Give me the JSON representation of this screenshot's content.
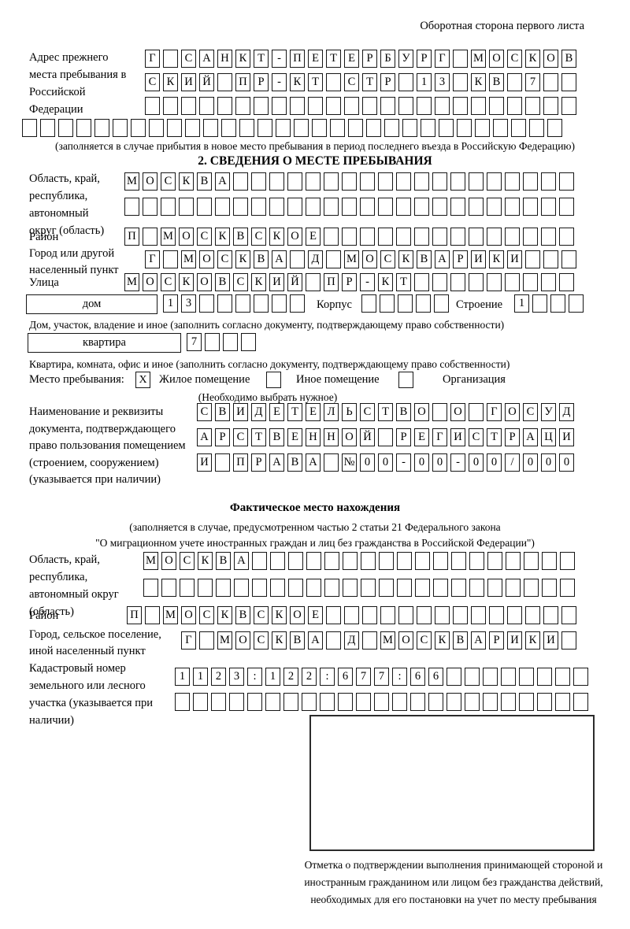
{
  "header": {
    "note": "Оборотная сторона первого листа"
  },
  "prev_address": {
    "label": "Адрес прежнего места пребывания в Российской Федерации",
    "row1": {
      "n": 24,
      "chars": "Г САНКТ-ПЕТЕРБУРГ МОСКОВ"
    },
    "row2": {
      "n": 24,
      "chars": "СКИЙ ПР-КТ СТР 13 КВ 7"
    },
    "row3": {
      "n": 24,
      "chars": ""
    },
    "row4": {
      "n": 30,
      "chars": ""
    },
    "caption": "(заполняется в случае прибытия в новое место пребывания в период последнего въезда в Российскую Федерацию)"
  },
  "section2": {
    "title": "2. СВЕДЕНИЯ О МЕСТЕ ПРЕБЫВАНИЯ",
    "oblast_label": "Область, край, республика, автономный округ (область)",
    "oblast_row1": {
      "n": 25,
      "chars": "МОСКВА"
    },
    "oblast_row2": {
      "n": 25,
      "chars": ""
    },
    "raion_label": "Район",
    "raion_row": {
      "n": 25,
      "chars": "П МОСКВСКОЕ"
    },
    "gorod_label": "Город или другой населенный пункт",
    "gorod_row": {
      "n": 24,
      "chars": "Г МОСКВА Д МОСКВАРИКИ"
    },
    "ulitsa_label": "Улица",
    "ulitsa_row": {
      "n": 25,
      "chars": "МОСКОВСКИЙ ПР-КТ"
    },
    "dom_label": "дом",
    "dom_row": {
      "n": 8,
      "chars": "13"
    },
    "korpus_label": "Корпус",
    "korpus_row": {
      "n": 5,
      "chars": ""
    },
    "stroenie_label": "Строение",
    "stroenie_row": {
      "n": 4,
      "chars": "1"
    },
    "dom_caption": "Дом, участок, владение и иное (заполнить согласно документу, подтверждающему право собственности)",
    "kvartira_label": "квартира",
    "kvartira_row": {
      "n": 4,
      "chars": "7"
    },
    "kvartira_caption": "Квартира, комната, офис и иное (заполнить согласно документу, подтверждающему право собственности)",
    "mesto_label": "Место пребывания:",
    "opt1": {
      "label": "Жилое помещение",
      "mark": "X"
    },
    "opt2": {
      "label": "Иное помещение",
      "mark": ""
    },
    "opt3": {
      "label": "Организация",
      "mark": ""
    },
    "mesto_note": "(Необходимо выбрать нужное)",
    "doc_label": "Наименование и реквизиты документа, подтверждающего право пользования помещением (строением, сооружением) (указывается при наличии)",
    "doc_row1": {
      "n": 21,
      "chars": "СВИДЕТЕЛЬСТВО О ГОСУД"
    },
    "doc_row2": {
      "n": 21,
      "chars": "АРСТВЕННОЙ РЕГИСТРАЦИ"
    },
    "doc_row3": {
      "n": 21,
      "chars": "И ПРАВА №00-00-00/000"
    }
  },
  "fact": {
    "title": "Фактическое место нахождения",
    "note1": "(заполняется в случае, предусмотренном частью 2 статьи 21 Федерального закона",
    "note2": "\"О миграционном учете иностранных граждан и лиц без гражданства в Российской Федерации\")",
    "oblast_label": "Область, край, республика, автономный округ (область)",
    "oblast_row1": {
      "n": 24,
      "chars": "МОСКВА"
    },
    "oblast_row2": {
      "n": 24,
      "chars": ""
    },
    "raion_label": "Район",
    "raion_row": {
      "n": 25,
      "chars": "П МОСКВСКОЕ"
    },
    "gorod_label": "Город, сельское поселение, иной населенный пункт",
    "gorod_row": {
      "n": 22,
      "chars": "Г МОСКВА Д МОСКВАРИКИ"
    },
    "kadastr_label": "Кадастровый номер земельного или лесного участка (указывается при наличии)",
    "kadastr_row1": {
      "n": 23,
      "chars": "1123:122:677:66"
    },
    "kadastr_row2": {
      "n": 23,
      "chars": ""
    },
    "stamp_caption": "Отметка о подтверждении выполнения принимающей стороной и иностранным гражданином или лицом без гражданства действий, необходимых для его постановки на учет по месту пребывания"
  }
}
